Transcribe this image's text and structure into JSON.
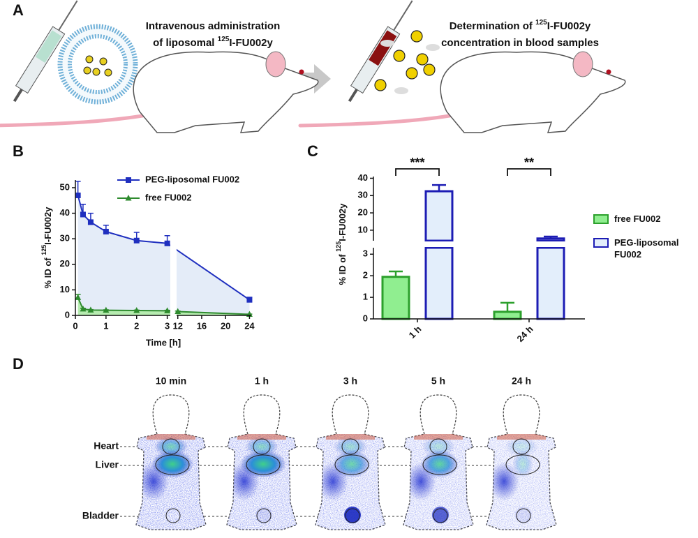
{
  "panel_labels": [
    "A",
    "B",
    "C",
    "D"
  ],
  "panel_a": {
    "left_caption": {
      "line1": "Intravenous administration",
      "pre": "of liposomal ",
      "sup": "125",
      "post": "I-FU002y"
    },
    "right_caption": {
      "pre": "Determination of ",
      "sup": "125",
      "post": "I-FU002y",
      "line2": "concentration in blood samples"
    }
  },
  "chart_data": [
    {
      "type": "line",
      "xlabel": "Time [h]",
      "ylabel": {
        "pre": "% ID of ",
        "sup": "125",
        "post": "I-FU002y"
      },
      "x_segments": [
        {
          "xlim": [
            0,
            3.1
          ],
          "xticks": [
            0,
            1,
            2,
            3
          ]
        },
        {
          "xlim": [
            11.8,
            24.3
          ],
          "xticks": [
            12,
            16,
            20,
            24
          ]
        }
      ],
      "ylim": [
        0,
        53
      ],
      "yticks": [
        0,
        10,
        20,
        30,
        40,
        50
      ],
      "legend": "upper right",
      "series": [
        {
          "name": "PEG-liposomal FU002",
          "color": "#1f2fbf",
          "fill": "#e4ecf8",
          "marker": "square",
          "x": [
            0.083,
            0.25,
            0.5,
            1,
            2,
            3,
            24
          ],
          "values": [
            47,
            39.5,
            36.5,
            32.8,
            29.3,
            28.2,
            6.1
          ],
          "errors": [
            5.5,
            4,
            3.5,
            2.5,
            3.2,
            3,
            1
          ]
        },
        {
          "name": "free FU002",
          "color": "#2e8b2e",
          "fill": "#b6ecb0",
          "marker": "triangle",
          "x": [
            0.083,
            0.25,
            0.5,
            1,
            2,
            3,
            12,
            24
          ],
          "values": [
            7,
            2.5,
            2.1,
            2,
            1.9,
            1.8,
            1.5,
            0.4
          ],
          "errors": [
            1.2,
            0.3,
            0.2,
            0.2,
            0.2,
            0.2,
            0.2,
            0.1
          ]
        }
      ]
    },
    {
      "type": "bar",
      "categories": [
        "1 h",
        "24 h"
      ],
      "ylabel": {
        "pre": "% ID of ",
        "sup": "125",
        "post": "I-FU002y"
      },
      "y_segments": [
        {
          "ylim": [
            0,
            3.3
          ],
          "yticks": [
            0,
            1,
            2,
            3
          ]
        },
        {
          "ylim": [
            3.9,
            41
          ],
          "yticks": [
            10,
            20,
            30,
            40
          ]
        }
      ],
      "legend": "right",
      "annotations": [
        "***",
        "**"
      ],
      "series": [
        {
          "name": "free FU002",
          "color": "#2ca02c",
          "fill": "#90ee90",
          "values": [
            1.95,
            0.33
          ],
          "errors": [
            0.25,
            0.42
          ]
        },
        {
          "name": "PEG-liposomal FU002",
          "color": "#1c1cb4",
          "fill": "#e3eefb",
          "values": [
            32.5,
            5.2
          ],
          "errors": [
            3.6,
            1.1
          ]
        }
      ]
    }
  ],
  "panel_d": {
    "times": [
      "10 min",
      "1 h",
      "3 h",
      "5 h",
      "24 h"
    ],
    "organs": [
      "Heart",
      "Liver",
      "Bladder"
    ]
  }
}
